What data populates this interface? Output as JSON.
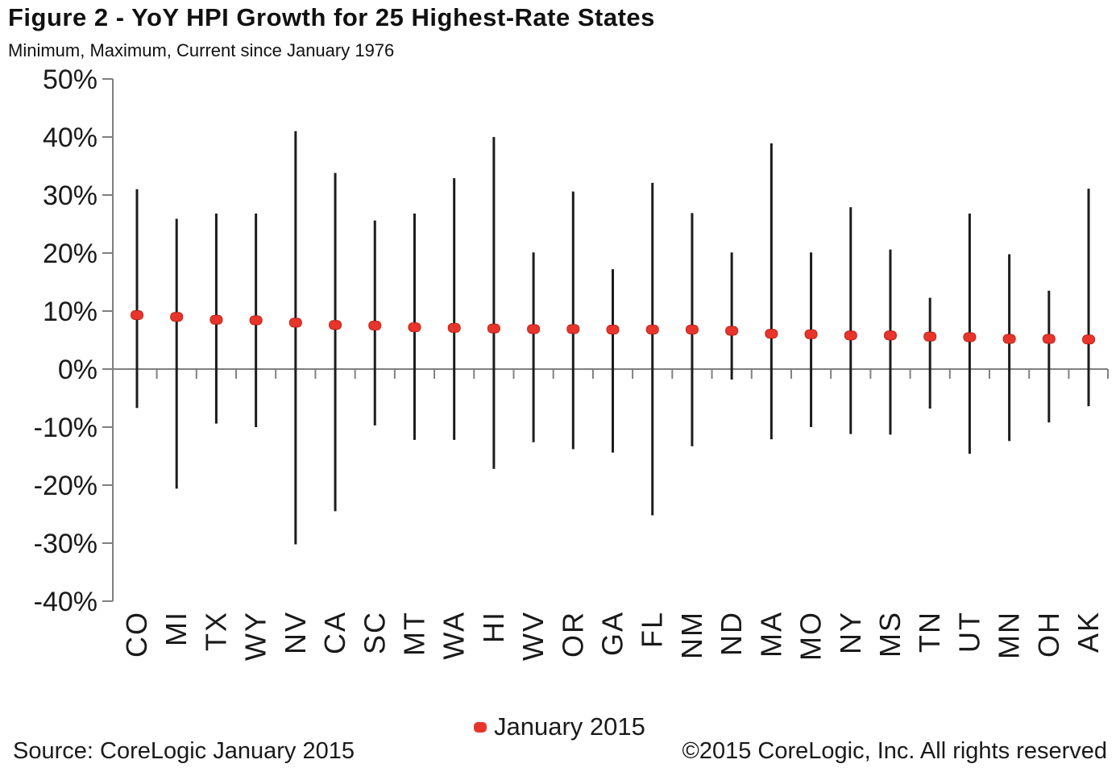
{
  "header": {
    "title": "Figure 2 - YoY HPI Growth for 25 Highest-Rate States",
    "subtitle": "Minimum, Maximum, Current since January 1976"
  },
  "chart_data": {
    "type": "bar",
    "variant": "min-max range lines with current-value dot (hi-lo chart)",
    "title": "Figure 2 - YoY HPI Growth for 25 Highest-Rate States",
    "subtitle": "Minimum, Maximum, Current since January 1976",
    "categories": [
      "CO",
      "MI",
      "TX",
      "WY",
      "NV",
      "CA",
      "SC",
      "MT",
      "WA",
      "HI",
      "WV",
      "OR",
      "GA",
      "FL",
      "NM",
      "ND",
      "MA",
      "MO",
      "NY",
      "MS",
      "TN",
      "UT",
      "MN",
      "OH",
      "AK"
    ],
    "series": [
      {
        "name": "Maximum since January 1976",
        "values": [
          31.0,
          25.9,
          26.8,
          26.8,
          41.0,
          33.8,
          25.6,
          26.8,
          32.9,
          40.0,
          20.1,
          30.6,
          17.2,
          32.1,
          26.9,
          20.1,
          38.9,
          20.1,
          27.9,
          20.6,
          12.3,
          26.8,
          19.8,
          13.5,
          31.1
        ]
      },
      {
        "name": "Minimum since January 1976",
        "values": [
          -6.7,
          -20.6,
          -9.4,
          -10.0,
          -30.2,
          -24.5,
          -9.7,
          -12.2,
          -12.2,
          -17.2,
          -12.6,
          -13.8,
          -14.4,
          -25.2,
          -13.3,
          -1.8,
          -12.1,
          -10.0,
          -11.2,
          -11.3,
          -6.8,
          -14.6,
          -12.4,
          -9.2,
          -6.4
        ]
      },
      {
        "name": "January 2015 (current)",
        "values": [
          9.3,
          9.0,
          8.5,
          8.4,
          8.0,
          7.6,
          7.5,
          7.2,
          7.1,
          7.0,
          6.9,
          6.9,
          6.8,
          6.8,
          6.8,
          6.6,
          6.1,
          6.0,
          5.8,
          5.8,
          5.6,
          5.5,
          5.2,
          5.2,
          5.1
        ]
      }
    ],
    "xlabel": "",
    "ylabel": "",
    "unit": "%",
    "ylim": [
      -40,
      50
    ],
    "ytick_step": 10,
    "ytick_labels": [
      "50%",
      "40%",
      "30%",
      "20%",
      "10%",
      "0%",
      "-10%",
      "-20%",
      "-30%",
      "-40%"
    ],
    "grid": "none (zero baseline only)",
    "legend_position": "bottom-center",
    "legend_label": "January 2015",
    "colors": {
      "range_line": "#1c1c1c",
      "current_dot": "#e8352b",
      "current_dot_edge": "#c02318",
      "axis": "#808080",
      "text": "#1a1a1a"
    }
  },
  "footer": {
    "source": "Source: CoreLogic  January 2015",
    "copyright": "©2015 CoreLogic, Inc. All rights reserved"
  }
}
